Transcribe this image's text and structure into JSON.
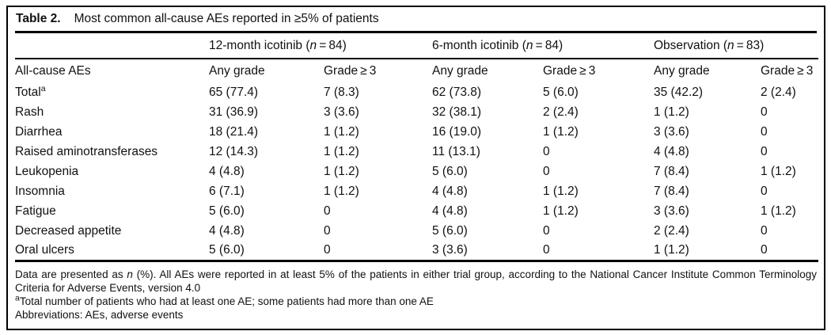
{
  "table": {
    "label": "Table 2.",
    "title": "Most common all-cause AEs reported in ≥5% of patients",
    "groups": [
      {
        "pre": "12-month icotinib (",
        "n": "n",
        "post": " = 84)"
      },
      {
        "pre": "6-month icotinib (",
        "n": "n",
        "post": " = 84)"
      },
      {
        "pre": "Observation (",
        "n": "n",
        "post": " = 83)"
      }
    ],
    "stub_header": "All-cause AEs",
    "col_headers": [
      "Any grade",
      "Grade ≥ 3",
      "Any grade",
      "Grade ≥ 3",
      "Any grade",
      "Grade ≥ 3"
    ],
    "rows": [
      {
        "label": "Total",
        "sup": "a",
        "values": [
          "65 (77.4)",
          "7 (8.3)",
          "62 (73.8)",
          "5 (6.0)",
          "35 (42.2)",
          "2 (2.4)"
        ]
      },
      {
        "label": "Rash",
        "sup": "",
        "values": [
          "31 (36.9)",
          "3 (3.6)",
          "32 (38.1)",
          "2 (2.4)",
          "1 (1.2)",
          "0"
        ]
      },
      {
        "label": "Diarrhea",
        "sup": "",
        "values": [
          "18 (21.4)",
          "1 (1.2)",
          "16 (19.0)",
          "1 (1.2)",
          "3 (3.6)",
          "0"
        ]
      },
      {
        "label": "Raised aminotransferases",
        "sup": "",
        "values": [
          "12 (14.3)",
          "1 (1.2)",
          "11 (13.1)",
          "0",
          "4 (4.8)",
          "0"
        ]
      },
      {
        "label": "Leukopenia",
        "sup": "",
        "values": [
          "4 (4.8)",
          "1 (1.2)",
          "5 (6.0)",
          "0",
          "7 (8.4)",
          "1 (1.2)"
        ]
      },
      {
        "label": "Insomnia",
        "sup": "",
        "values": [
          "6 (7.1)",
          "1 (1.2)",
          "4 (4.8)",
          "1 (1.2)",
          "7 (8.4)",
          "0"
        ]
      },
      {
        "label": "Fatigue",
        "sup": "",
        "values": [
          "5 (6.0)",
          "0",
          "4 (4.8)",
          "1 (1.2)",
          "3 (3.6)",
          "1 (1.2)"
        ]
      },
      {
        "label": "Decreased appetite",
        "sup": "",
        "values": [
          "4 (4.8)",
          "0",
          "5 (6.0)",
          "0",
          "2 (2.4)",
          "0"
        ]
      },
      {
        "label": "Oral ulcers",
        "sup": "",
        "values": [
          "5 (6.0)",
          "0",
          "3 (3.6)",
          "0",
          "1 (1.2)",
          "0"
        ]
      }
    ],
    "footnotes": {
      "note1_pre": "Data are presented as ",
      "note1_n": "n",
      "note1_post": " (%). All AEs were reported in at least 5% of the patients in either trial group, according to the National Cancer Institute Common Terminology Criteria for Adverse Events, version 4.0",
      "note2_sup": "a",
      "note2": "Total number of patients who had at least one AE; some patients had more than one AE",
      "note3": "Abbreviations: AEs, adverse events"
    },
    "colors": {
      "text": "#111111",
      "rule": "#000000",
      "background": "#ffffff"
    }
  },
  "chart_data": {
    "type": "table",
    "title": "Table 2. Most common all-cause AEs reported in ≥5% of patients",
    "column_groups": [
      "12-month icotinib (n = 84)",
      "6-month icotinib (n = 84)",
      "Observation (n = 83)"
    ],
    "columns": [
      "All-cause AEs",
      "Any grade",
      "Grade ≥ 3",
      "Any grade",
      "Grade ≥ 3",
      "Any grade",
      "Grade ≥ 3"
    ],
    "rows": [
      [
        "Total(a)",
        "65 (77.4)",
        "7 (8.3)",
        "62 (73.8)",
        "5 (6.0)",
        "35 (42.2)",
        "2 (2.4)"
      ],
      [
        "Rash",
        "31 (36.9)",
        "3 (3.6)",
        "32 (38.1)",
        "2 (2.4)",
        "1 (1.2)",
        "0"
      ],
      [
        "Diarrhea",
        "18 (21.4)",
        "1 (1.2)",
        "16 (19.0)",
        "1 (1.2)",
        "3 (3.6)",
        "0"
      ],
      [
        "Raised aminotransferases",
        "12 (14.3)",
        "1 (1.2)",
        "11 (13.1)",
        "0",
        "4 (4.8)",
        "0"
      ],
      [
        "Leukopenia",
        "4 (4.8)",
        "1 (1.2)",
        "5 (6.0)",
        "0",
        "7 (8.4)",
        "1 (1.2)"
      ],
      [
        "Insomnia",
        "6 (7.1)",
        "1 (1.2)",
        "4 (4.8)",
        "1 (1.2)",
        "7 (8.4)",
        "0"
      ],
      [
        "Fatigue",
        "5 (6.0)",
        "0",
        "4 (4.8)",
        "1 (1.2)",
        "3 (3.6)",
        "1 (1.2)"
      ],
      [
        "Decreased appetite",
        "4 (4.8)",
        "0",
        "5 (6.0)",
        "0",
        "2 (2.4)",
        "0"
      ],
      [
        "Oral ulcers",
        "5 (6.0)",
        "0",
        "3 (3.6)",
        "0",
        "1 (1.2)",
        "0"
      ]
    ]
  }
}
